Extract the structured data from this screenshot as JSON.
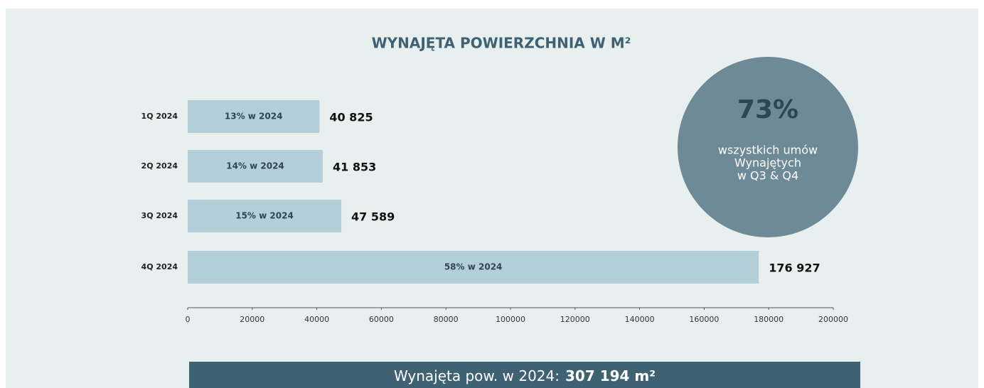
{
  "chart_data": {
    "type": "bar",
    "orientation": "horizontal",
    "title": "WYNAJĘTA POWIERZCHNIA W M²",
    "categories": [
      "1Q 2024",
      "2Q 2024",
      "3Q 2024",
      "4Q 2024"
    ],
    "values": [
      40825,
      41853,
      47589,
      176927
    ],
    "value_labels": [
      "40 825",
      "41 853",
      "47 589",
      "176 927"
    ],
    "bar_labels": [
      "13% w 2024",
      "14% w 2024",
      "15% w 2024",
      "58% w 2024"
    ],
    "color": "#b5cfd8",
    "xlim": [
      0,
      200000
    ],
    "xticks": [
      0,
      20000,
      40000,
      60000,
      80000,
      100000,
      120000,
      140000,
      160000,
      180000,
      200000
    ],
    "grid": false
  },
  "callout": {
    "value": "73%",
    "lines": [
      "wszystkich umów",
      "Wynajętych",
      "w Q3 & Q4"
    ]
  },
  "summary": {
    "label": "Wynajęta pow. w 2024:",
    "value": "307 194 m²"
  }
}
